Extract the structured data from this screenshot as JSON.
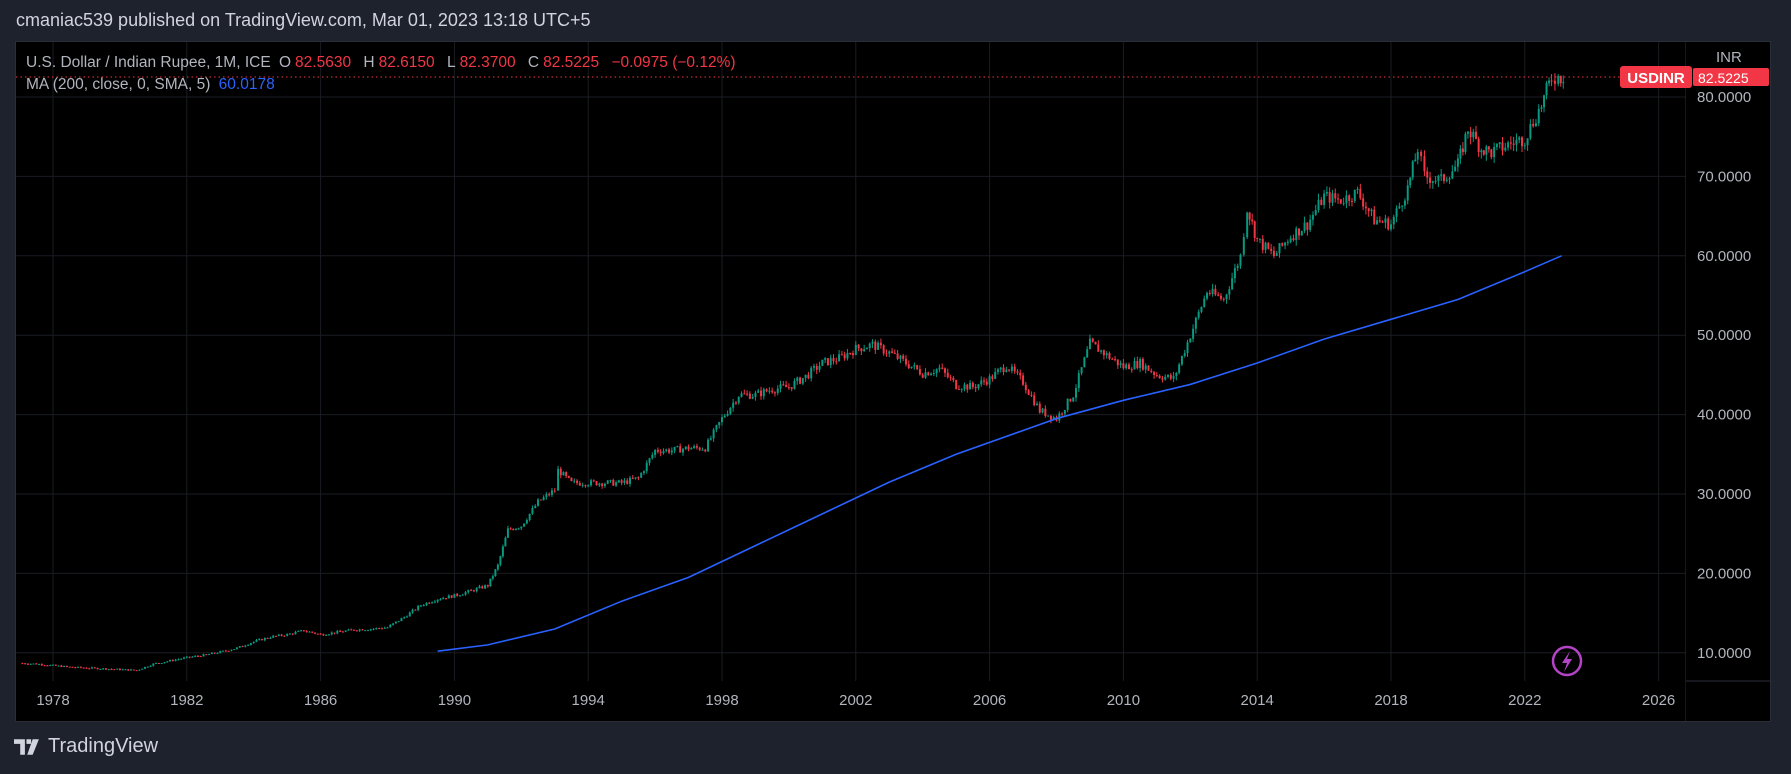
{
  "header": {
    "publish_text": "cmaniac539 published on TradingView.com, Mar 01, 2023 13:18 UTC+5"
  },
  "legend": {
    "symbol": "U.S. Dollar / Indian Rupee, 1M, ICE",
    "o_label": "O",
    "o": "82.5630",
    "h_label": "H",
    "h": "82.6150",
    "l_label": "L",
    "l": "82.3700",
    "c_label": "C",
    "c": "82.5225",
    "change": "−0.0975 (−0.12%)",
    "ma_label": "MA (200, close, 0, SMA, 5)",
    "ma_value": "60.0178"
  },
  "price_axis": {
    "currency": "INR",
    "symbol_tag": "USDINR",
    "last_price": "82.5225"
  },
  "footer": {
    "brand": "TradingView"
  },
  "colors": {
    "up": "#089981",
    "down": "#f23645",
    "ma": "#2962ff",
    "grid": "#1a1c22",
    "accent_icon": "#b543c8"
  },
  "chart_data": {
    "type": "candlestick",
    "title": "U.S. Dollar / Indian Rupee, 1M, ICE",
    "xlim": [
      1976.5,
      2028.5
    ],
    "ylim": [
      6.5,
      84
    ],
    "x_ticks": [
      "1978",
      "1982",
      "1986",
      "1990",
      "1994",
      "1998",
      "2002",
      "2006",
      "2010",
      "2014",
      "2018",
      "2022",
      "2026"
    ],
    "y_ticks": [
      "10.0000",
      "20.0000",
      "30.0000",
      "40.0000",
      "50.0000",
      "60.0000",
      "70.0000",
      "80.0000"
    ],
    "grid": true,
    "series": [
      {
        "name": "USDINR",
        "kind": "close",
        "x": [
          1977,
          1977.5,
          1978,
          1978.5,
          1979,
          1979.5,
          1980,
          1980.5,
          1981,
          1981.5,
          1982,
          1982.5,
          1983,
          1983.5,
          1984,
          1984.5,
          1985,
          1985.5,
          1986,
          1986.5,
          1987,
          1987.5,
          1988,
          1988.5,
          1989,
          1989.5,
          1990,
          1990.5,
          1991,
          1991.3,
          1991.6,
          1992,
          1992.5,
          1993,
          1993.1,
          1993.5,
          1994,
          1994.5,
          1995,
          1995.5,
          1996,
          1996.5,
          1997,
          1997.5,
          1998,
          1998.5,
          1999,
          1999.5,
          2000,
          2000.5,
          2001,
          2001.5,
          2002,
          2002.5,
          2003,
          2003.5,
          2004,
          2004.5,
          2005,
          2005.5,
          2006,
          2006.5,
          2007,
          2007.5,
          2008,
          2008.5,
          2009,
          2009.5,
          2010,
          2010.5,
          2011,
          2011.5,
          2012,
          2012.5,
          2013,
          2013.5,
          2013.7,
          2014,
          2014.5,
          2015,
          2015.5,
          2016,
          2016.5,
          2017,
          2017.5,
          2018,
          2018.5,
          2018.8,
          2019,
          2019.5,
          2020,
          2020.3,
          2020.7,
          2021,
          2021.5,
          2022,
          2022.5,
          2022.8,
          2023,
          2023.15
        ],
        "y": [
          8.7,
          8.6,
          8.4,
          8.2,
          8.1,
          8.0,
          7.9,
          7.8,
          8.6,
          9.0,
          9.4,
          9.7,
          10.1,
          10.6,
          11.4,
          12.0,
          12.3,
          12.8,
          12.3,
          12.6,
          12.9,
          13.0,
          13.2,
          14.5,
          16.0,
          16.8,
          17.2,
          17.8,
          18.5,
          21.0,
          25.5,
          26.0,
          29.0,
          30.5,
          33.0,
          31.4,
          31.4,
          31.4,
          31.4,
          32.0,
          35.5,
          35.5,
          35.8,
          35.8,
          39.5,
          42.5,
          42.5,
          43.2,
          43.5,
          44.8,
          46.5,
          47.1,
          48.3,
          48.8,
          47.8,
          46.5,
          45.2,
          45.8,
          43.7,
          43.5,
          44.5,
          46.2,
          44.1,
          40.5,
          39.5,
          42.5,
          49.0,
          47.5,
          46.0,
          46.5,
          45.0,
          44.5,
          50.0,
          55.5,
          54.5,
          60.0,
          66.0,
          62.0,
          60.0,
          62.5,
          64.0,
          67.5,
          67.0,
          68.0,
          64.5,
          64.0,
          68.5,
          73.5,
          70.0,
          69.5,
          71.5,
          76.0,
          73.5,
          73.0,
          74.0,
          74.8,
          79.0,
          82.5,
          82.5,
          82.52
        ]
      },
      {
        "name": "MA (200, close, 0, SMA, 5)",
        "kind": "line",
        "x": [
          1989.5,
          1991,
          1993,
          1995,
          1997,
          1999,
          2001,
          2003,
          2005,
          2007,
          2008,
          2010,
          2012,
          2014,
          2016,
          2018,
          2020,
          2022,
          2023.1
        ],
        "y": [
          10.2,
          11.0,
          13.0,
          16.5,
          19.5,
          23.5,
          27.5,
          31.5,
          35.0,
          38.0,
          39.5,
          41.8,
          43.8,
          46.5,
          49.5,
          52.0,
          54.5,
          58.0,
          60.0
        ]
      }
    ]
  }
}
